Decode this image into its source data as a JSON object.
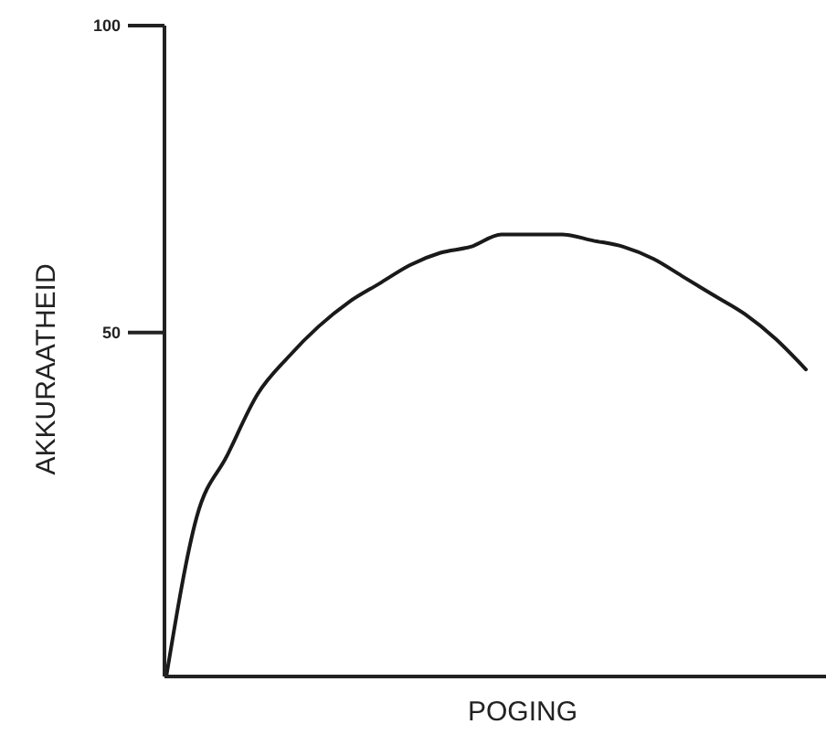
{
  "chart_data": {
    "type": "line",
    "xlabel": "POGING",
    "ylabel": "AKKURAATHEID",
    "categories": [
      null,
      null,
      null,
      null,
      null,
      null,
      null,
      null,
      null,
      null,
      null,
      null,
      null,
      null,
      null,
      null,
      null,
      null,
      null,
      null,
      null,
      null
    ],
    "series": [
      {
        "color": "#1a1a1a",
        "values": [
          -6,
          20,
          30,
          40,
          46,
          51,
          55,
          58,
          61,
          63,
          64,
          66,
          66,
          66,
          65,
          64,
          62,
          59,
          56,
          53,
          49,
          44
        ]
      }
    ],
    "ylim": [
      -6,
      100
    ],
    "yticks": [
      50,
      100
    ]
  }
}
